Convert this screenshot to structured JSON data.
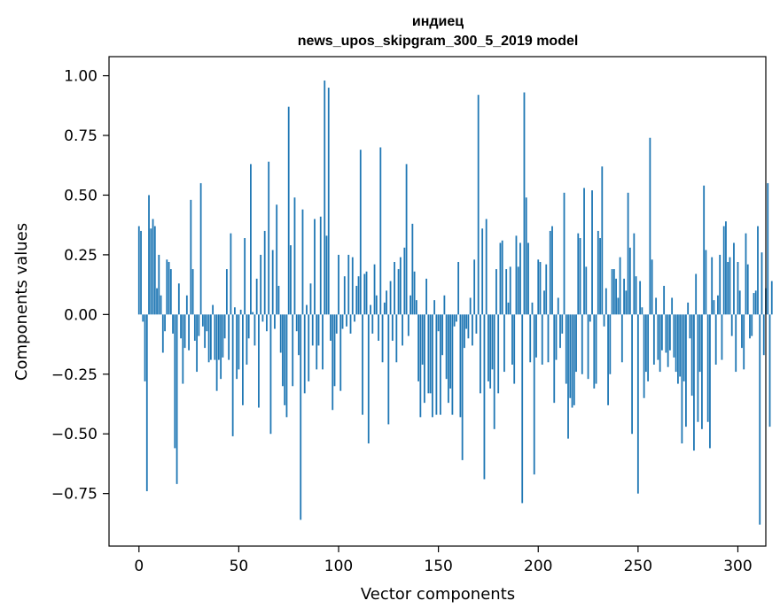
{
  "chart_data": {
    "type": "bar",
    "title": "индиец",
    "subtitle": "news_upos_skipgram_300_5_2019 model",
    "xlabel": "Vector components",
    "ylabel": "Components values",
    "xlim": [
      -15,
      314
    ],
    "ylim": [
      -0.97,
      1.08
    ],
    "xticks": [
      0,
      50,
      100,
      150,
      200,
      250,
      300
    ],
    "xtick_labels": [
      "0",
      "50",
      "100",
      "150",
      "200",
      "250",
      "300"
    ],
    "yticks": [
      -0.75,
      -0.5,
      -0.25,
      0.0,
      0.25,
      0.5,
      0.75,
      1.0
    ],
    "ytick_labels": [
      "−0.75",
      "−0.50",
      "−0.25",
      "0.00",
      "0.25",
      "0.50",
      "0.75",
      "1.00"
    ],
    "bar_color": "#1f77b4",
    "grid": false,
    "series": [
      {
        "values": [
          0.37,
          0.35,
          -0.03,
          -0.28,
          -0.74,
          0.5,
          0.36,
          0.4,
          0.37,
          0.11,
          0.25,
          0.08,
          -0.16,
          -0.07,
          0.23,
          0.22,
          0.19,
          -0.08,
          -0.56,
          -0.71,
          0.13,
          -0.1,
          -0.29,
          -0.14,
          0.08,
          -0.15,
          0.48,
          0.19,
          -0.11,
          -0.24,
          -0.09,
          0.55,
          -0.05,
          -0.14,
          -0.07,
          -0.2,
          -0.19,
          0.04,
          -0.19,
          -0.32,
          -0.19,
          -0.27,
          -0.18,
          -0.1,
          0.19,
          -0.19,
          0.34,
          -0.51,
          0.03,
          -0.27,
          -0.23,
          0.02,
          -0.38,
          0.32,
          -0.21,
          -0.1,
          0.63,
          0.01,
          -0.13,
          0.15,
          -0.39,
          0.25,
          -0.03,
          0.35,
          -0.07,
          0.64,
          -0.5,
          0.27,
          -0.06,
          0.46,
          0.12,
          -0.16,
          -0.3,
          -0.38,
          -0.43,
          0.87,
          0.29,
          -0.3,
          0.49,
          -0.07,
          -0.17,
          -0.86,
          0.44,
          -0.33,
          0.04,
          -0.28,
          0.13,
          -0.13,
          0.4,
          -0.23,
          -0.13,
          0.41,
          -0.23,
          0.98,
          0.33,
          0.95,
          -0.11,
          -0.4,
          -0.3,
          -0.08,
          0.25,
          -0.32,
          -0.06,
          0.16,
          -0.05,
          0.25,
          -0.08,
          0.24,
          -0.03,
          0.12,
          0.16,
          0.69,
          -0.42,
          0.17,
          0.18,
          -0.54,
          0.04,
          -0.08,
          0.21,
          0.08,
          -0.11,
          0.7,
          -0.2,
          0.05,
          0.1,
          -0.46,
          0.14,
          -0.11,
          0.22,
          -0.2,
          0.19,
          0.24,
          -0.13,
          0.28,
          0.63,
          -0.09,
          0.08,
          0.38,
          0.18,
          0.06,
          -0.28,
          -0.43,
          -0.21,
          -0.37,
          0.15,
          -0.33,
          -0.33,
          -0.43,
          0.06,
          -0.42,
          -0.07,
          -0.42,
          -0.17,
          0.08,
          -0.27,
          -0.37,
          -0.31,
          -0.42,
          -0.05,
          -0.03,
          0.22,
          -0.43,
          -0.61,
          -0.14,
          -0.06,
          -0.1,
          0.07,
          -0.13,
          0.23,
          -0.08,
          0.92,
          -0.33,
          0.36,
          -0.69,
          0.4,
          -0.28,
          -0.31,
          -0.23,
          -0.48,
          0.19,
          -0.33,
          0.3,
          0.31,
          -0.24,
          0.19,
          0.05,
          0.2,
          -0.21,
          -0.29,
          0.33,
          0.2,
          0.3,
          -0.79,
          0.93,
          0.49,
          0.3,
          -0.2,
          0.05,
          -0.67,
          -0.18,
          0.23,
          0.22,
          -0.21,
          0.1,
          0.21,
          -0.2,
          0.35,
          0.37,
          -0.37,
          -0.19,
          0.07,
          -0.14,
          -0.08,
          0.51,
          -0.29,
          -0.52,
          -0.35,
          -0.39,
          -0.38,
          -0.24,
          0.34,
          0.32,
          -0.25,
          0.53,
          0.2,
          -0.27,
          -0.03,
          0.52,
          -0.31,
          -0.29,
          0.35,
          0.32,
          0.62,
          -0.05,
          0.11,
          -0.38,
          -0.25,
          0.19,
          0.19,
          0.15,
          0.07,
          0.24,
          -0.2,
          0.15,
          0.1,
          0.51,
          0.28,
          -0.5,
          0.34,
          0.16,
          -0.75,
          0.14,
          0.03,
          -0.35,
          -0.24,
          -0.28,
          0.74,
          0.23,
          -0.21,
          0.07,
          -0.19,
          -0.24,
          -0.15,
          0.12,
          -0.16,
          -0.22,
          -0.15,
          0.07,
          -0.18,
          -0.24,
          -0.29,
          -0.26,
          -0.54,
          -0.28,
          -0.47,
          0.05,
          -0.1,
          -0.34,
          -0.57,
          0.17,
          -0.45,
          -0.24,
          -0.48,
          0.54,
          0.27,
          -0.45,
          -0.56,
          0.24,
          0.06,
          -0.21,
          0.08,
          0.25,
          -0.19,
          0.37,
          0.39,
          0.22,
          0.24,
          -0.09,
          0.3,
          -0.24,
          0.22,
          0.1,
          -0.14,
          -0.23,
          0.34,
          0.21,
          -0.1,
          -0.09,
          0.09,
          0.1,
          0.37,
          -0.88,
          0.26,
          -0.17,
          0.11,
          0.55,
          -0.47,
          0.14
        ]
      }
    ]
  }
}
